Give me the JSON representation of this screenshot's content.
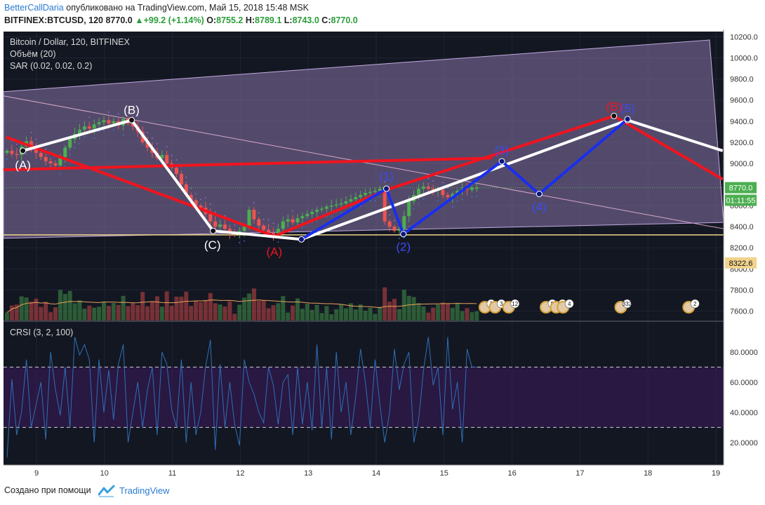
{
  "header": {
    "author": "BetterCallDaria",
    "published": "опубликовано на TradingView.com, Май 15, 2018 15:48 MSK",
    "symbol": "BITFINEX:BTCUSD, 120",
    "last": "8770.0",
    "change_arrow": "▲",
    "change": "+99.2 (+1.14%)",
    "o_label": "O:",
    "o": "8755.2",
    "h_label": "H:",
    "h": "8789.1",
    "l_label": "L:",
    "l": "8743.0",
    "c_label": "C:",
    "c": "8770.0"
  },
  "legend": {
    "title": "Bitcoin / Dollar, 120, BITFINEX",
    "volume": "Объём (20)",
    "sar": "SAR (0.02, 0.02, 0.2)",
    "crsi": "CRSI (3, 2, 100)"
  },
  "colors": {
    "background": "#131722",
    "up": "#4caf50",
    "down": "#ef5350",
    "zone": "#7b6a98",
    "red_line": "#f0141e",
    "white_line": "#ffffff",
    "blue_line": "#1a2ef0",
    "support": "#f1d38c",
    "crsi_line": "#2e70b5"
  },
  "chart_data": [
    {
      "type": "candlestick",
      "title": "Bitcoin / Dollar, 120, BITFINEX",
      "x_axis": {
        "ticks": [
          "9",
          "10",
          "11",
          "12",
          "13",
          "14",
          "15",
          "16",
          "17",
          "18",
          "19"
        ]
      },
      "y_axis": {
        "range": [
          7510,
          10250
        ],
        "ticks": [
          "7600.0",
          "7800.0",
          "8000.0",
          "8200.0",
          "8400.0",
          "8600.0",
          "8800.0",
          "9000.0",
          "9200.0",
          "9400.0",
          "9600.0",
          "9800.0",
          "10000.0",
          "10200.0"
        ]
      },
      "price_labels": {
        "last": "8770.0",
        "countdown": "01:11:55",
        "support": "8322.6"
      },
      "ohlc_close_path": [
        9120,
        9090,
        9080,
        9160,
        9210,
        9150,
        9100,
        9060,
        9020,
        9000,
        8980,
        9060,
        9150,
        9230,
        9280,
        9320,
        9350,
        9330,
        9370,
        9390,
        9410,
        9380,
        9400,
        9360,
        9420,
        9380,
        9350,
        9300,
        9200,
        9150,
        9100,
        9050,
        9080,
        9000,
        8960,
        8900,
        8800,
        8700,
        8650,
        8600,
        8580,
        8520,
        8450,
        8400,
        8420,
        8380,
        8340,
        8330,
        8360,
        8400,
        8560,
        8470,
        8410,
        8370,
        8340,
        8320,
        8380,
        8450,
        8470,
        8440,
        8480,
        8500,
        8520,
        8540,
        8560,
        8570,
        8590,
        8600,
        8610,
        8620,
        8640,
        8660,
        8680,
        8700,
        8720,
        8730,
        8740,
        8760,
        8450,
        8400,
        8360,
        8380,
        8500,
        8640,
        8700,
        8760,
        8780,
        8760,
        8740,
        8750,
        8700,
        8680,
        8710,
        8740,
        8760,
        8750,
        8770,
        8770
      ],
      "wave_annotations": {
        "white": [
          {
            "label": "(A)",
            "price": 9040
          },
          {
            "label": "(B)",
            "price": 9410
          },
          {
            "label": "(C)",
            "price": 8360
          },
          {
            "label": "",
            "price": 8280
          },
          {
            "label": "",
            "price": 9410
          },
          {
            "label": "",
            "price": 9100
          }
        ],
        "red": [
          {
            "label": "",
            "price": 9250
          },
          {
            "label": "(A)",
            "price": 8320
          },
          {
            "label": "",
            "price": 8700
          },
          {
            "label": "(B)",
            "price": 9440
          },
          {
            "label": "",
            "price": 8850
          }
        ],
        "red_horizontal": {
          "from_price": 8940,
          "to_price": 9050
        },
        "blue": [
          {
            "label": "",
            "price": 8280
          },
          {
            "label": "(1)",
            "price": 8760
          },
          {
            "label": "(2)",
            "price": 8330
          },
          {
            "label": "(3)",
            "price": 9020
          },
          {
            "label": "(4)",
            "price": 8710
          },
          {
            "label": "(5)",
            "price": 9420
          }
        ]
      },
      "indicators": [
        "Объём (20)",
        "SAR (0.02, 0.02, 0.2)"
      ],
      "event_flags": [
        "7",
        "3",
        "12",
        "5",
        "7",
        "4",
        "332",
        "2"
      ]
    },
    {
      "type": "line",
      "title": "CRSI (3, 2, 100)",
      "y_axis": {
        "range": [
          5,
          100
        ],
        "ticks": [
          "20.0000",
          "40.0000",
          "60.0000",
          "80.0000"
        ]
      },
      "bands": [
        30,
        70
      ],
      "series": [
        {
          "name": "CRSI (3, 2, 100)",
          "values": [
            10,
            62,
            25,
            40,
            75,
            30,
            45,
            60,
            22,
            80,
            55,
            38,
            70,
            30,
            90,
            78,
            85,
            75,
            20,
            75,
            40,
            68,
            35,
            72,
            85,
            20,
            40,
            60,
            30,
            55,
            70,
            25,
            80,
            72,
            42,
            30,
            75,
            20,
            60,
            25,
            40,
            70,
            88,
            15,
            72,
            30,
            60,
            32,
            18,
            75,
            60,
            52,
            40,
            33,
            70,
            58,
            32,
            60,
            65,
            25,
            70,
            32,
            60,
            28,
            85,
            30,
            70,
            22,
            80,
            40,
            60,
            25,
            50,
            82,
            60,
            30,
            75,
            45,
            20,
            40,
            82,
            55,
            72,
            80,
            20,
            35,
            68,
            90,
            58,
            70,
            25,
            90,
            42,
            60,
            20,
            82,
            70,
            70
          ]
        }
      ]
    }
  ],
  "footer": {
    "created_with": "Создано при помощи",
    "brand": "TradingView"
  }
}
